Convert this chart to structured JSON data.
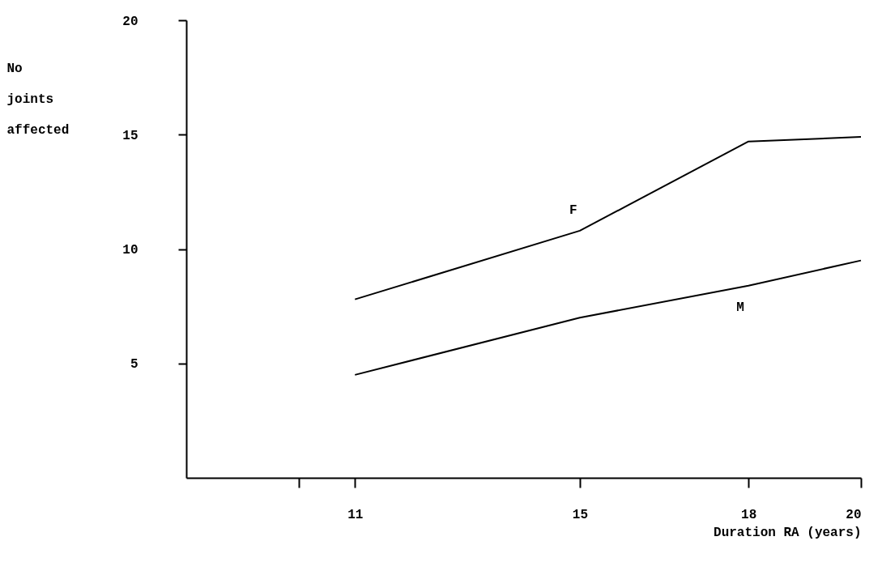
{
  "chart_data": {
    "type": "line",
    "xlabel": "Duration RA (years)",
    "ylabel": "No joints affected",
    "x": [
      11,
      15,
      18,
      20
    ],
    "series": [
      {
        "name": "F",
        "color": "#000000",
        "values": [
          7.8,
          10.8,
          14.7,
          14.9
        ]
      },
      {
        "name": "M",
        "color": "#000000",
        "values": [
          4.5,
          7.0,
          8.4,
          9.5
        ]
      }
    ],
    "xlim": [
      8,
      20
    ],
    "xticks": [
      {
        "value": 10,
        "label": null
      },
      11,
      15,
      18,
      20
    ],
    "ylim": [
      0,
      20
    ],
    "yticks": [
      5,
      10,
      15,
      20
    ],
    "grid": false,
    "marker": "none",
    "line_style": "solid"
  }
}
